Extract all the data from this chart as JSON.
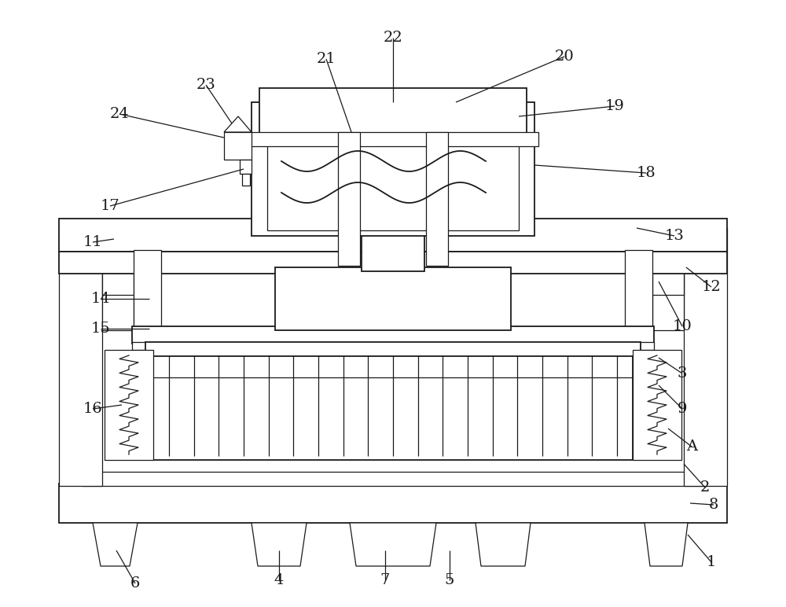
{
  "bg_color": "#ffffff",
  "lc": "#1a1a1a",
  "figsize": [
    10.0,
    7.72
  ],
  "lw_main": 1.3,
  "lw_thin": 0.9
}
